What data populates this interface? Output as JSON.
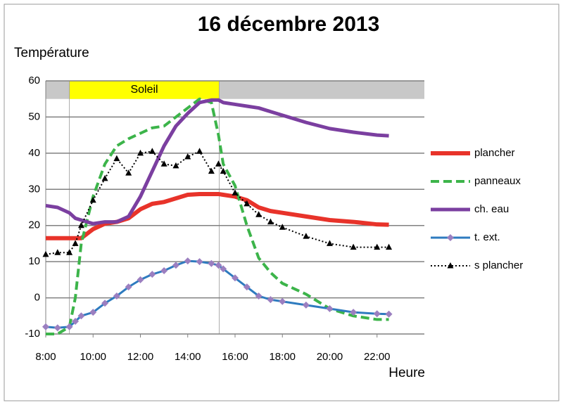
{
  "chart_data": {
    "type": "line",
    "title": "16 décembre 2013",
    "y_label": "Température",
    "x_label": "Heure",
    "xlim": [
      8,
      24
    ],
    "ylim": [
      -10,
      60
    ],
    "yticks": [
      -10,
      0,
      10,
      20,
      30,
      40,
      50,
      60
    ],
    "xticks": [
      {
        "value": 8,
        "label": "8:00"
      },
      {
        "value": 10,
        "label": "10:00"
      },
      {
        "value": 12,
        "label": "12:00"
      },
      {
        "value": 14,
        "label": "14:00"
      },
      {
        "value": 16,
        "label": "16:00"
      },
      {
        "value": 18,
        "label": "18:00"
      },
      {
        "value": 20,
        "label": "20:00"
      },
      {
        "value": 22,
        "label": "22:00"
      }
    ],
    "grid": true,
    "legend": "right",
    "band": {
      "yrange": [
        55,
        60
      ],
      "color": "#c8c8c8"
    },
    "annotation": {
      "text": "Soleil",
      "xrange": [
        9,
        15.33
      ],
      "color": "#ffff00"
    },
    "x": [
      8,
      8.5,
      9,
      9.25,
      9.5,
      10,
      10.5,
      11,
      11.5,
      12,
      12.5,
      13,
      13.5,
      14,
      14.5,
      15,
      15.3,
      15.5,
      16,
      16.5,
      17,
      17.5,
      18,
      19,
      20,
      21,
      22,
      22.5
    ],
    "series": [
      {
        "name": "plancher",
        "color": "#e8332a",
        "width": 6,
        "dash": null,
        "marker": null,
        "values": [
          16.5,
          16.5,
          16.5,
          16.5,
          16.5,
          19,
          20.5,
          21,
          22,
          24.5,
          26,
          26.5,
          27.5,
          28.5,
          28.7,
          28.7,
          28.7,
          28.5,
          28,
          27,
          25,
          24,
          23.5,
          22.5,
          21.5,
          21,
          20.3,
          20.2
        ]
      },
      {
        "name": "panneaux",
        "color": "#3cb44a",
        "width": 4,
        "dash": "12 6",
        "marker": null,
        "values": [
          -10,
          -10,
          -8,
          0,
          15,
          28,
          37,
          42,
          44,
          45.5,
          47,
          47.5,
          50,
          52.5,
          55,
          54,
          45,
          37,
          31,
          20,
          11,
          7,
          4,
          1,
          -3,
          -5,
          -6,
          -6
        ]
      },
      {
        "name": "ch. eau",
        "color": "#7b3fa0",
        "width": 5,
        "dash": null,
        "marker": null,
        "values": [
          25.5,
          25,
          23.5,
          22,
          21.5,
          20.5,
          21,
          21,
          22.5,
          28,
          35,
          42,
          47.5,
          51,
          54,
          54.7,
          54.7,
          54,
          53.5,
          53,
          52.5,
          51.5,
          50.5,
          48.5,
          46.8,
          45.8,
          45,
          44.8
        ]
      },
      {
        "name": "t. ext.",
        "color": "#2e7bbf",
        "width": 3,
        "dash": null,
        "marker": "diamond",
        "marker_color": "#9b7fc0",
        "values": [
          -8,
          -8.3,
          -8,
          -6.5,
          -5,
          -4,
          -1.5,
          0.5,
          3,
          5,
          6.5,
          7.5,
          9,
          10.2,
          10,
          9.5,
          9,
          8,
          5.5,
          3,
          0.5,
          -0.5,
          -1,
          -2,
          -3,
          -4,
          -4.4,
          -4.5
        ]
      },
      {
        "name": "s plancher",
        "color": "#000000",
        "width": 2,
        "dash": "2 3",
        "marker": "triangle",
        "marker_color": "#000000",
        "values": [
          12,
          12.5,
          12.5,
          15,
          20,
          27,
          33,
          38.5,
          34.5,
          40,
          40.5,
          37,
          36.5,
          39,
          40.5,
          35,
          37,
          35,
          29,
          26,
          23,
          21,
          19.5,
          17,
          15,
          14,
          14,
          14
        ]
      }
    ]
  }
}
